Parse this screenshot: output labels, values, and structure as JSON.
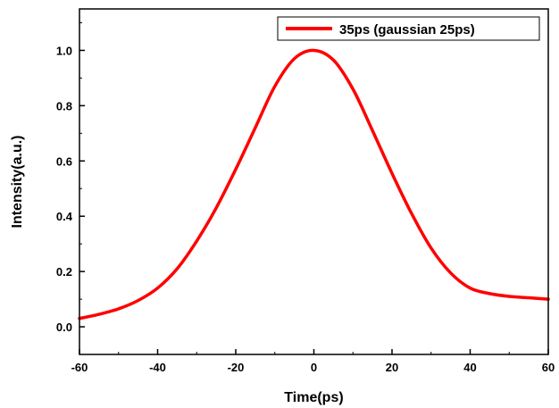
{
  "chart_data": {
    "type": "line",
    "xlabel": "Time(ps)",
    "ylabel": "Intensity(a.u.)",
    "xlim": [
      -60,
      60
    ],
    "ylim": [
      -0.1,
      1.15
    ],
    "x_ticks": [
      "-60",
      "-40",
      "-20",
      "0",
      "20",
      "40",
      "60"
    ],
    "x_tick_values": [
      -60,
      -40,
      -20,
      0,
      20,
      40,
      60
    ],
    "y_ticks": [
      "0.0",
      "0.2",
      "0.4",
      "0.6",
      "0.8",
      "1.0"
    ],
    "y_tick_values": [
      0.0,
      0.2,
      0.4,
      0.6,
      0.8,
      1.0
    ],
    "grid": false,
    "legend_position": "top-right",
    "series": [
      {
        "name": "35ps (gaussian 25ps)",
        "color": "#ff0000",
        "x": [
          -60,
          -55,
          -50,
          -45,
          -40,
          -35,
          -30,
          -25,
          -20,
          -15,
          -10,
          -5,
          0,
          5,
          10,
          15,
          20,
          25,
          30,
          35,
          40,
          45,
          50,
          55,
          60
        ],
        "y": [
          0.03,
          0.045,
          0.065,
          0.095,
          0.14,
          0.21,
          0.31,
          0.43,
          0.57,
          0.72,
          0.87,
          0.97,
          1.0,
          0.965,
          0.86,
          0.71,
          0.555,
          0.41,
          0.285,
          0.195,
          0.14,
          0.12,
          0.11,
          0.105,
          0.1
        ]
      }
    ]
  }
}
